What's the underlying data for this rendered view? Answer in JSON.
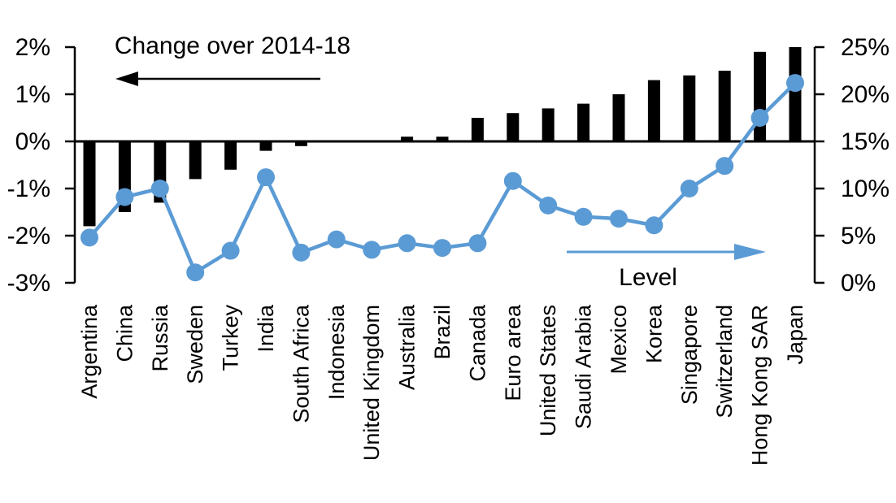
{
  "chart_data": {
    "type": "combo-bar-line",
    "title_annotations": {
      "bar_series_label": "Change over 2014-18",
      "line_series_label": "Level"
    },
    "categories": [
      "Argentina",
      "China",
      "Russia",
      "Sweden",
      "Turkey",
      "India",
      "South Africa",
      "Indonesia",
      "United Kingdom",
      "Australia",
      "Brazil",
      "Canada",
      "Euro area",
      "United States",
      "Saudi Arabia",
      "Mexico",
      "Korea",
      "Singapore",
      "Switzerland",
      "Hong Kong SAR",
      "Japan"
    ],
    "series": [
      {
        "name": "Change over 2014-18",
        "type": "bar",
        "axis": "left",
        "values": [
          -1.8,
          -1.5,
          -1.3,
          -0.8,
          -0.6,
          -0.2,
          -0.1,
          0,
          0,
          0.1,
          0.1,
          0.5,
          0.6,
          0.7,
          0.8,
          1.0,
          1.3,
          1.4,
          1.5,
          1.9,
          2.0
        ]
      },
      {
        "name": "Level",
        "type": "line",
        "axis": "right",
        "values": [
          4.8,
          9.1,
          10.0,
          1.1,
          3.4,
          11.2,
          3.2,
          4.6,
          3.5,
          4.2,
          3.7,
          4.2,
          10.8,
          8.2,
          7.0,
          6.8,
          6.1,
          10.0,
          12.4,
          17.5,
          21.2
        ]
      }
    ],
    "left_axis": {
      "labels": [
        "2%",
        "1%",
        "0%",
        "-1%",
        "-2%",
        "-3%"
      ],
      "max": 2,
      "min": -3,
      "unit": "%"
    },
    "right_axis": {
      "labels": [
        "25%",
        "20%",
        "15%",
        "10%",
        "5%",
        "0%"
      ],
      "max": 25,
      "min": 0,
      "unit": "%"
    },
    "colors": {
      "bar": "#000000",
      "line": "#5B9BD5"
    },
    "grid": false,
    "legend_position": "in-plot annotations with arrows"
  }
}
